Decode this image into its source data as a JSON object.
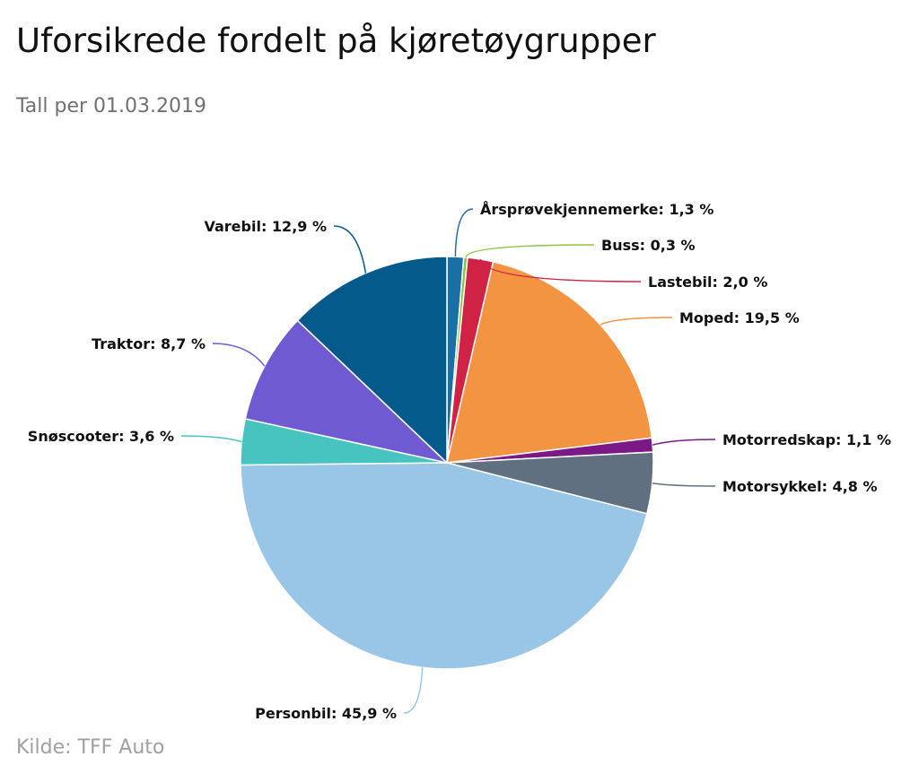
{
  "header": {
    "title": "Uforsikrede fordelt på kjøretøygrupper",
    "subtitle": "Tall per 01.03.2019"
  },
  "footer": {
    "source": "Kilde: TFF Auto"
  },
  "chart_data": {
    "type": "pie",
    "title": "Uforsikrede fordelt på kjøretøygrupper",
    "subtitle": "Tall per 01.03.2019",
    "unit": "%",
    "slices": [
      {
        "label": "Årsprøvekjennemerke",
        "value": 1.3,
        "display": "Årsprøvekjennemerke: 1,3 %",
        "color": "#1a6fa3"
      },
      {
        "label": "Buss",
        "value": 0.3,
        "display": "Buss: 0,3 %",
        "color": "#8cc63f"
      },
      {
        "label": "Lastebil",
        "value": 2.0,
        "display": "Lastebil: 2,0 %",
        "color": "#cf2244"
      },
      {
        "label": "Moped",
        "value": 19.5,
        "display": "Moped: 19,5 %",
        "color": "#f39443"
      },
      {
        "label": "Motorredskap",
        "value": 1.1,
        "display": "Motorredskap: 1,1 %",
        "color": "#7b1a86"
      },
      {
        "label": "Motorsykkel",
        "value": 4.8,
        "display": "Motorsykkel: 4,8 %",
        "color": "#607080"
      },
      {
        "label": "Personbil",
        "value": 45.9,
        "display": "Personbil: 45,9 %",
        "color": "#99c5e6"
      },
      {
        "label": "Snøscooter",
        "value": 3.6,
        "display": "Snøscooter: 3,6 %",
        "color": "#48c4c0"
      },
      {
        "label": "Traktor",
        "value": 8.7,
        "display": "Traktor: 8,7 %",
        "color": "#6f5ad1"
      },
      {
        "label": "Varebil",
        "value": 12.9,
        "display": "Varebil: 12,9 %",
        "color": "#055a8c"
      }
    ]
  }
}
